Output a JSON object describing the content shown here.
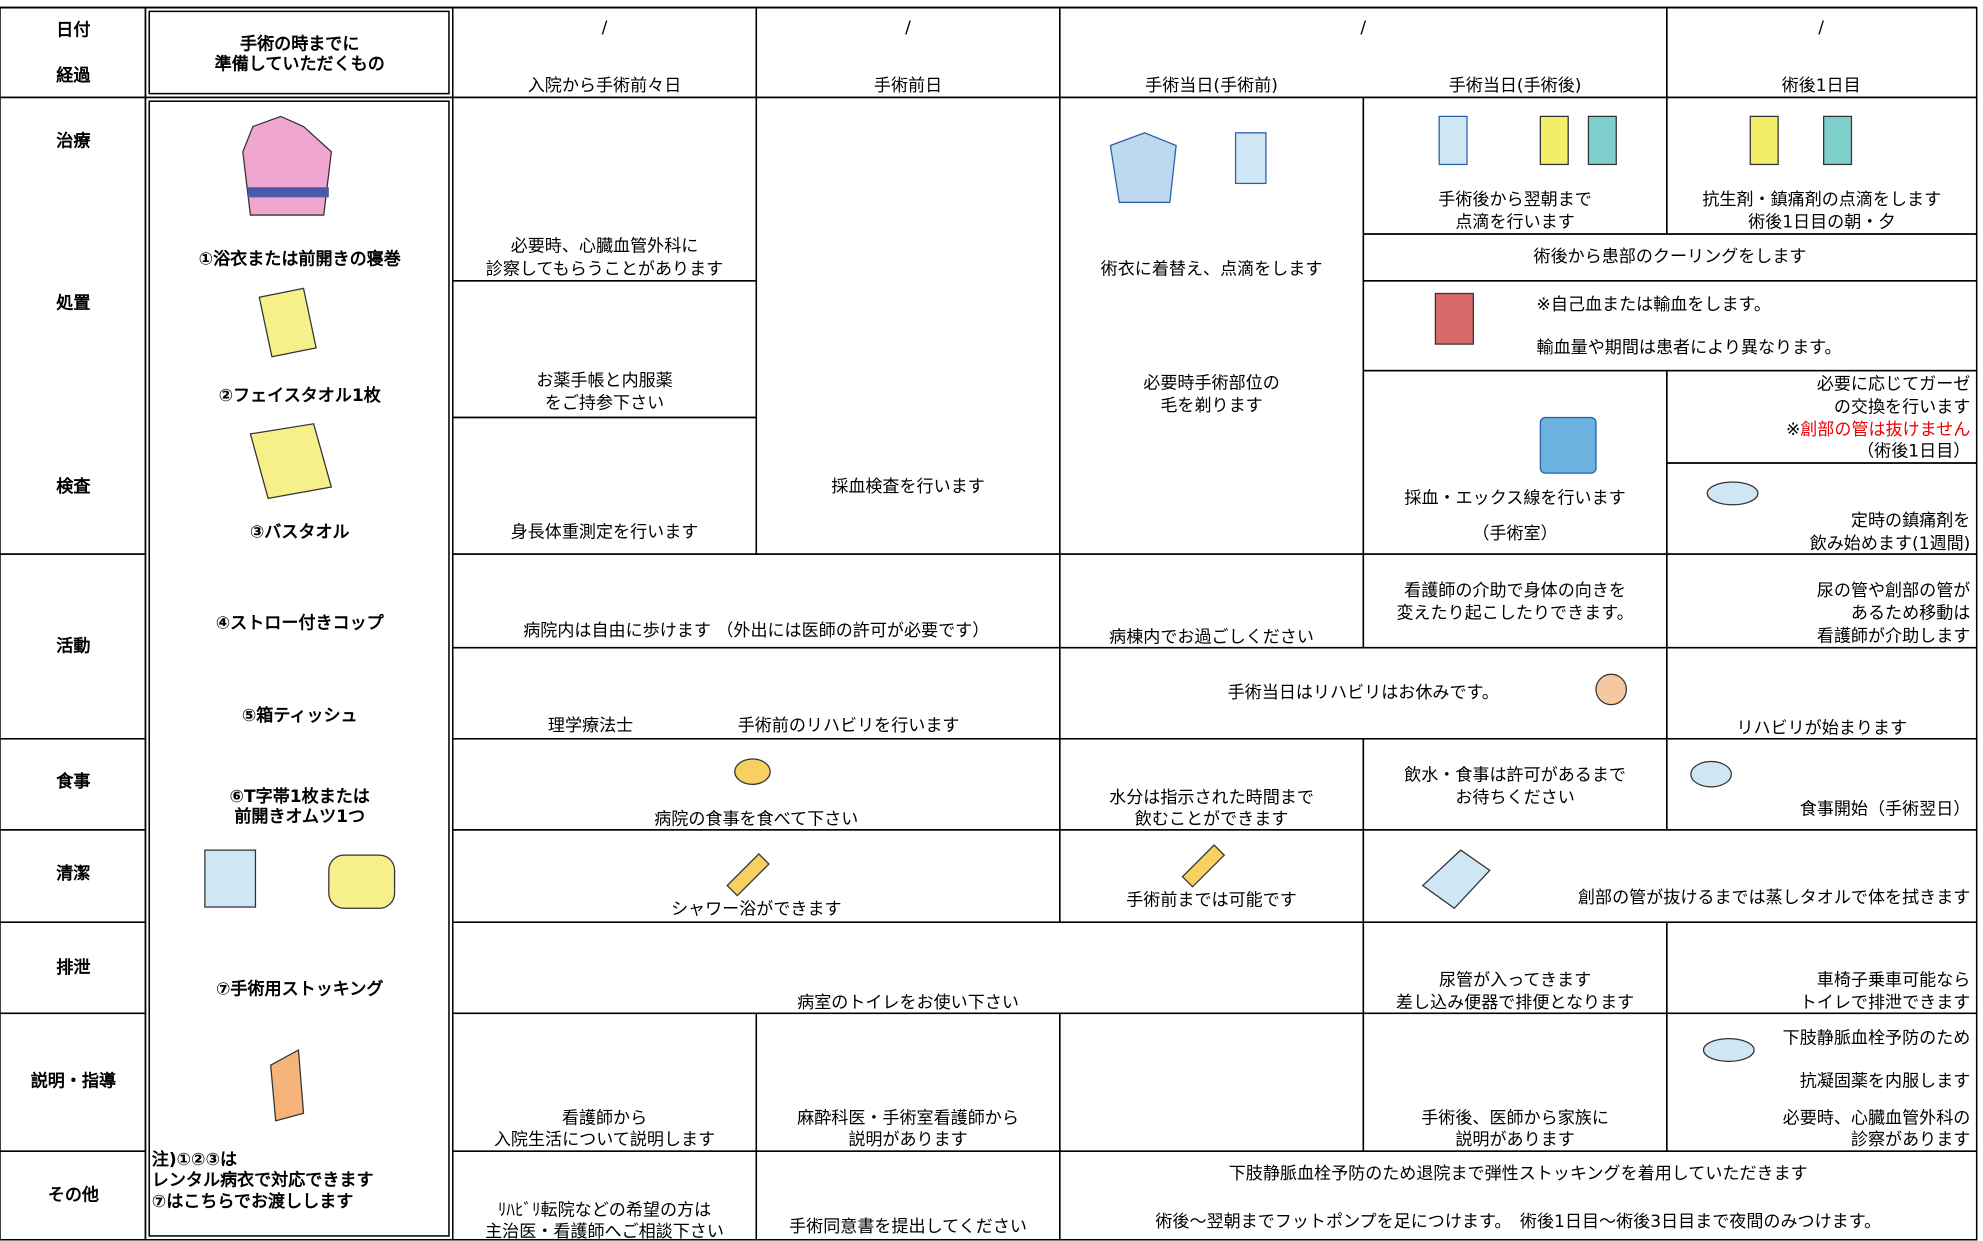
{
  "header": {
    "row_labels": [
      "日付",
      "経過"
    ],
    "prep_title": [
      "手術の時までに",
      "準備していただくもの"
    ],
    "dates": [
      "/",
      "/",
      "/",
      "/"
    ],
    "phases": [
      "入院から手術前々日",
      "手術前日",
      "手術当日(手術前)",
      "手術当日(手術後)",
      "術後1日目"
    ]
  },
  "row_labels": [
    "治療",
    "処置",
    "検査",
    "活動",
    "食事",
    "清潔",
    "排泄",
    "説明・指導",
    "その他"
  ],
  "prep_items": [
    [
      "①浴衣または前開きの寝巻"
    ],
    [
      "②フェイスタオル1枚"
    ],
    [
      "③バスタオル"
    ],
    [
      "④ストロー付きコップ"
    ],
    [
      "⑤箱ティッシュ"
    ],
    [
      "⑥T字帯1枚または",
      "前開きオムツ1つ"
    ],
    [
      "⑦手術用ストッキング"
    ]
  ],
  "prep_note": [
    "注)①②③は",
    "レンタル病衣で対応できます",
    "⑦はこちらでお渡しします"
  ],
  "cells": [
    {
      "lines": [
        "必要時、心臓血管外科に",
        "診察してもらうことがあります"
      ]
    },
    {
      "lines": [
        "お薬手帳と内服薬",
        "をご持参下さい"
      ]
    },
    {
      "lines": [
        "身長体重測定を行います"
      ]
    },
    {
      "lines": [
        "採血検査を行います"
      ]
    },
    {
      "lines": [
        "術衣に着替え、点滴をします",
        "必要時手術部位の",
        "毛を剃ります"
      ]
    },
    {
      "lines": [
        "手術後から翌朝まで",
        "点滴を行います"
      ]
    },
    {
      "lines": [
        "抗生剤・鎮痛剤の点滴をします",
        "術後1日目の朝・夕"
      ]
    },
    {
      "lines": [
        "術後から患部のクーリングをします"
      ]
    },
    {
      "lines": [
        "※自己血または輸血をします。",
        "輸血量や期間は患者により異なります。"
      ]
    },
    {
      "lines": [
        "採血・エックス線を行います",
        "（手術室）"
      ]
    },
    {
      "lines": [
        "必要に応じてガーゼ",
        "の交換を行います",
        [
          "※",
          "創部の管は抜けません"
        ],
        "（術後1日目）"
      ]
    },
    {
      "lines": [
        "定時の鎮痛剤を",
        "飲み始めます(1週間)"
      ]
    },
    {
      "lines": [
        "病院内は自由に歩けます （外出には医師の許可が必要です）"
      ]
    },
    {
      "lines": [
        "病棟内でお過ごしください"
      ]
    },
    {
      "lines": [
        "看護師の介助で身体の向きを",
        "変えたり起こしたりできます。"
      ]
    },
    {
      "lines": [
        "尿の管や創部の管が",
        "あるため移動は",
        "看護師が介助します"
      ]
    },
    {
      "lines": [
        "理学療法士",
        "手術前のリハビリを行います"
      ]
    },
    {
      "lines": [
        "手術当日はリハビリはお休みです。"
      ]
    },
    {
      "lines": [
        "リハビリが始まります"
      ]
    },
    {
      "lines": [
        "病院の食事を食べて下さい"
      ]
    },
    {
      "lines": [
        "水分は指示された時間まで",
        "飲むことができます"
      ]
    },
    {
      "lines": [
        "飲水・食事は許可があるまで",
        "お待ちください"
      ]
    },
    {
      "lines": [
        "食事開始（手術翌日）"
      ]
    },
    {
      "lines": [
        "シャワー浴ができます"
      ]
    },
    {
      "lines": [
        "手術前までは可能です"
      ]
    },
    {
      "lines": [
        "創部の管が抜けるまでは蒸しタオルで体を拭きます"
      ]
    },
    {
      "lines": [
        "病室のトイレをお使い下さい"
      ]
    },
    {
      "lines": [
        "尿管が入ってきます",
        "差し込み便器で排便となります"
      ]
    },
    {
      "lines": [
        "車椅子乗車可能なら",
        "トイレで排泄できます"
      ]
    },
    {
      "lines": [
        "看護師から",
        "入院生活について説明します"
      ]
    },
    {
      "lines": [
        "麻酔科医・手術室看護師から",
        "説明があります"
      ]
    },
    {
      "lines": []
    },
    {
      "lines": [
        "手術後、医師から家族に",
        "説明があります"
      ]
    },
    {
      "lines": [
        "下肢静脈血栓予防のため",
        "抗凝固薬を内服します",
        "必要時、心臓血管外科の",
        "診察があります"
      ]
    },
    {
      "lines": [
        "ﾘﾊﾋﾞﾘ転院などの希望の方は",
        "主治医・看護師へご相談下さい"
      ]
    },
    {
      "lines": [
        "手術同意書を提出してください"
      ]
    },
    {
      "lines": [
        "下肢静脈血栓予防のため退院まで弾性ストッキングを着用していただきます",
        "術後～翌朝までフットポンプを足につけます。　術後1日目～術後3日目まで夜間のみつけます。"
      ]
    }
  ]
}
